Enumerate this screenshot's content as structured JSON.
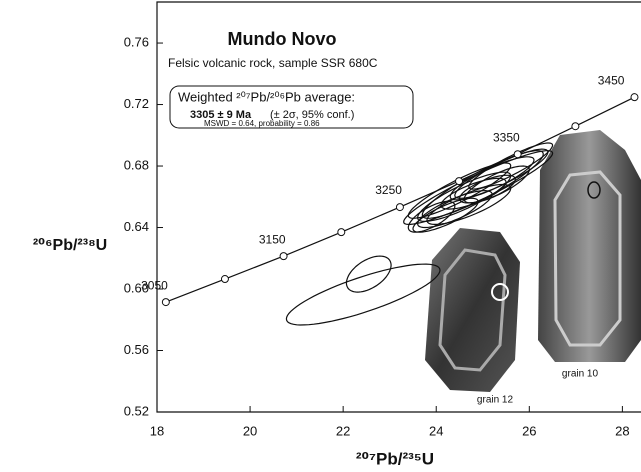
{
  "chart_data": {
    "type": "concordia",
    "title": "Mundo Novo",
    "subtitle": "Felsic volcanic rock, sample SSR 680C",
    "x_label": "²⁰⁷Pb/²³⁵U",
    "y_label": "²⁰⁶Pb/²³⁸U",
    "xlim": [
      18,
      28.4
    ],
    "ylim": [
      0.52,
      0.788
    ],
    "xticks": [
      18,
      20,
      22,
      24,
      26,
      28
    ],
    "yticks": [
      0.52,
      0.56,
      {
        "value": 0.6,
        "label": "0.60"
      },
      0.64,
      0.68,
      0.72,
      0.76
    ],
    "concordia": {
      "x": [
        18.19,
        19.46,
        20.72,
        21.96,
        23.22,
        24.49,
        25.75,
        26.99,
        28.26
      ],
      "y": [
        0.5915,
        0.6065,
        0.6214,
        0.637,
        0.6533,
        0.6702,
        0.6877,
        0.7059,
        0.7248
      ],
      "ages": [
        3050,
        null,
        3150,
        null,
        3250,
        null,
        3350,
        null,
        3450
      ]
    },
    "ellipses": [
      {
        "x": 22.43,
        "sx": 1.65,
        "y": 0.5964,
        "sy": 0.0198,
        "rho": 0.8
      },
      {
        "x": 22.55,
        "sx": 0.48,
        "y": 0.6097,
        "sy": 0.0117,
        "rho": 0.5
      },
      {
        "x": 24.9,
        "sx": 1.6,
        "y": 0.666,
        "sy": 0.024,
        "rho": 0.93
      },
      {
        "x": 25.0,
        "sx": 1.3,
        "y": 0.668,
        "sy": 0.022,
        "rho": 0.9
      },
      {
        "x": 24.6,
        "sx": 1.0,
        "y": 0.66,
        "sy": 0.016,
        "rho": 0.85
      },
      {
        "x": 24.7,
        "sx": 0.9,
        "y": 0.655,
        "sy": 0.013,
        "rho": 0.8
      },
      {
        "x": 25.2,
        "sx": 0.9,
        "y": 0.672,
        "sy": 0.014,
        "rho": 0.85
      },
      {
        "x": 24.4,
        "sx": 0.8,
        "y": 0.652,
        "sy": 0.012,
        "rho": 0.8
      },
      {
        "x": 25.4,
        "sx": 1.0,
        "y": 0.675,
        "sy": 0.016,
        "rho": 0.88
      },
      {
        "x": 24.8,
        "sx": 0.7,
        "y": 0.662,
        "sy": 0.01,
        "rho": 0.75
      },
      {
        "x": 24.2,
        "sx": 0.7,
        "y": 0.648,
        "sy": 0.011,
        "rho": 0.8
      },
      {
        "x": 25.6,
        "sx": 0.9,
        "y": 0.68,
        "sy": 0.015,
        "rho": 0.9
      },
      {
        "x": 24.5,
        "sx": 1.1,
        "y": 0.664,
        "sy": 0.018,
        "rho": 0.9
      },
      {
        "x": 25.1,
        "sx": 0.6,
        "y": 0.665,
        "sy": 0.009,
        "rho": 0.7
      },
      {
        "x": 23.9,
        "sx": 0.5,
        "y": 0.647,
        "sy": 0.01,
        "rho": 0.7
      },
      {
        "x": 25.3,
        "sx": 0.7,
        "y": 0.668,
        "sy": 0.012,
        "rho": 0.8
      }
    ],
    "result_box": {
      "heading": "Weighted ²⁰⁷Pb/²⁰⁶Pb average:",
      "age": "3305 ± 9 Ma",
      "uncertainty": "(± 2σ,  95% conf.)",
      "stats": "MSWD  = 0.64, probability = 0.86"
    },
    "image_labels": [
      "grain 12",
      "grain 10"
    ]
  }
}
